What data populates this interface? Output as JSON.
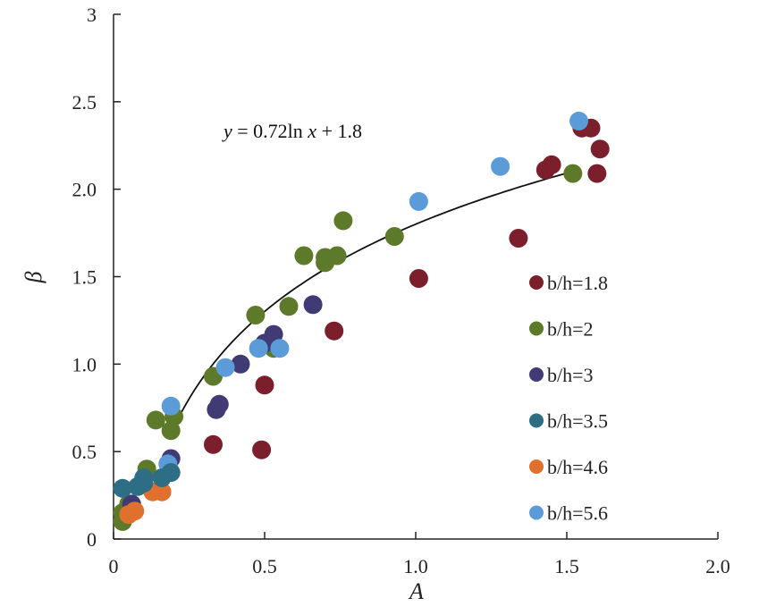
{
  "chart_data": {
    "type": "scatter",
    "xlabel": "A",
    "ylabel": "β",
    "xlim": [
      0,
      2.0
    ],
    "ylim": [
      0,
      3
    ],
    "x_ticks": [
      "0",
      "0.5",
      "1.0",
      "1.5",
      "2.0"
    ],
    "y_ticks": [
      "0",
      "0.5",
      "1.0",
      "1.5",
      "2.0",
      "2.5",
      "3"
    ],
    "x_tick_values": [
      0,
      0.5,
      1.0,
      1.5,
      2.0
    ],
    "y_tick_values": [
      0,
      0.5,
      1.0,
      1.5,
      2.0,
      2.5,
      3
    ],
    "grid": false,
    "legend_position": "right",
    "annotation": {
      "parts": [
        "y",
        " = 0.72ln ",
        "x",
        "  + 1.8"
      ]
    },
    "fit": {
      "a": 0.72,
      "b": 1.8,
      "x_range": [
        0.185,
        1.53
      ]
    },
    "series": [
      {
        "name": "b/h=1.8",
        "color": "#7a1f2b",
        "points": [
          [
            0.33,
            0.54
          ],
          [
            0.49,
            0.51
          ],
          [
            0.5,
            0.88
          ],
          [
            0.73,
            1.19
          ],
          [
            1.01,
            1.49
          ],
          [
            1.34,
            1.72
          ],
          [
            1.43,
            2.11
          ],
          [
            1.45,
            2.14
          ],
          [
            1.55,
            2.35
          ],
          [
            1.58,
            2.35
          ],
          [
            1.6,
            2.09
          ],
          [
            1.61,
            2.23
          ]
        ]
      },
      {
        "name": "b/h=2",
        "color": "#5c7a2a",
        "points": [
          [
            0.03,
            0.1
          ],
          [
            0.03,
            0.15
          ],
          [
            0.05,
            0.2
          ],
          [
            0.11,
            0.4
          ],
          [
            0.14,
            0.68
          ],
          [
            0.19,
            0.62
          ],
          [
            0.2,
            0.7
          ],
          [
            0.33,
            0.93
          ],
          [
            0.47,
            1.28
          ],
          [
            0.53,
            1.09
          ],
          [
            0.58,
            1.33
          ],
          [
            0.63,
            1.62
          ],
          [
            0.7,
            1.58
          ],
          [
            0.7,
            1.61
          ],
          [
            0.74,
            1.62
          ],
          [
            0.76,
            1.82
          ],
          [
            0.93,
            1.73
          ],
          [
            1.52,
            2.09
          ]
        ]
      },
      {
        "name": "b/h=3",
        "color": "#403a75",
        "points": [
          [
            0.06,
            0.2
          ],
          [
            0.19,
            0.46
          ],
          [
            0.34,
            0.74
          ],
          [
            0.35,
            0.77
          ],
          [
            0.42,
            1.0
          ],
          [
            0.5,
            1.12
          ],
          [
            0.53,
            1.17
          ],
          [
            0.66,
            1.34
          ]
        ]
      },
      {
        "name": "b/h=3.5",
        "color": "#2e6e84",
        "points": [
          [
            0.03,
            0.29
          ],
          [
            0.08,
            0.3
          ],
          [
            0.1,
            0.32
          ],
          [
            0.1,
            0.35
          ],
          [
            0.16,
            0.35
          ],
          [
            0.19,
            0.38
          ]
        ]
      },
      {
        "name": "b/h=4.6",
        "color": "#e0702d",
        "points": [
          [
            0.05,
            0.14
          ],
          [
            0.07,
            0.16
          ],
          [
            0.13,
            0.27
          ],
          [
            0.16,
            0.27
          ]
        ]
      },
      {
        "name": "b/h=5.6",
        "color": "#5b9bd8",
        "points": [
          [
            0.18,
            0.43
          ],
          [
            0.19,
            0.76
          ],
          [
            0.37,
            0.98
          ],
          [
            0.48,
            1.09
          ],
          [
            0.55,
            1.09
          ],
          [
            1.01,
            1.93
          ],
          [
            1.28,
            2.13
          ],
          [
            1.54,
            2.39
          ]
        ]
      }
    ],
    "marker_colors": [
      "#7a1f2b",
      "#5c7a2a",
      "#403a75",
      "#2e6e84",
      "#e0702d",
      "#5b9bd8"
    ],
    "legend_colors": [
      "#7a1f2b",
      "#5c7a2a",
      "#403a75",
      "#2e6e84",
      "#e0702d",
      "#5b9bd8"
    ]
  }
}
